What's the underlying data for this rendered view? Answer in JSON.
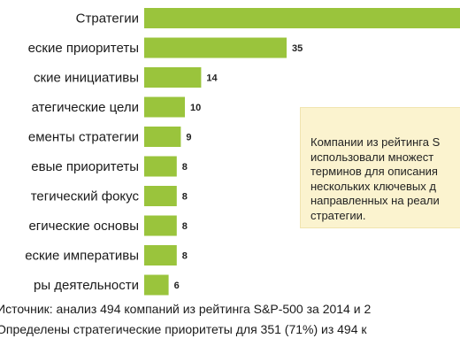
{
  "chart_data": {
    "type": "bar",
    "orientation": "horizontal",
    "categories": [
      "Стратегии",
      "еские приоритеты",
      "ские инициативы",
      "атегические цели",
      "ементы стратегии",
      "евые приоритеты",
      "тегический фокус",
      "егические основы",
      "еские императивы",
      "ры деятельности"
    ],
    "values": [
      null,
      35,
      14,
      10,
      9,
      8,
      8,
      8,
      8,
      6
    ],
    "value_labels": [
      "",
      "35",
      "14",
      "10",
      "9",
      "8",
      "8",
      "8",
      "8",
      "6"
    ],
    "bar_color": "#9ac43c",
    "grid": false,
    "legend": "none"
  },
  "callout": {
    "lines": [
      "Компании из рейтинга S",
      "использовали множест",
      "терминов для описания",
      "нескольких ключевых д",
      "направленных на реали",
      "стратегии."
    ],
    "background": "#fbf3cf"
  },
  "footnotes": {
    "source": "Источник: анализ 494 компаний из рейтинга S&P-500 за 2014 и 2",
    "note": "Определены стратегические приоритеты для 351 (71%) из 494 к"
  }
}
